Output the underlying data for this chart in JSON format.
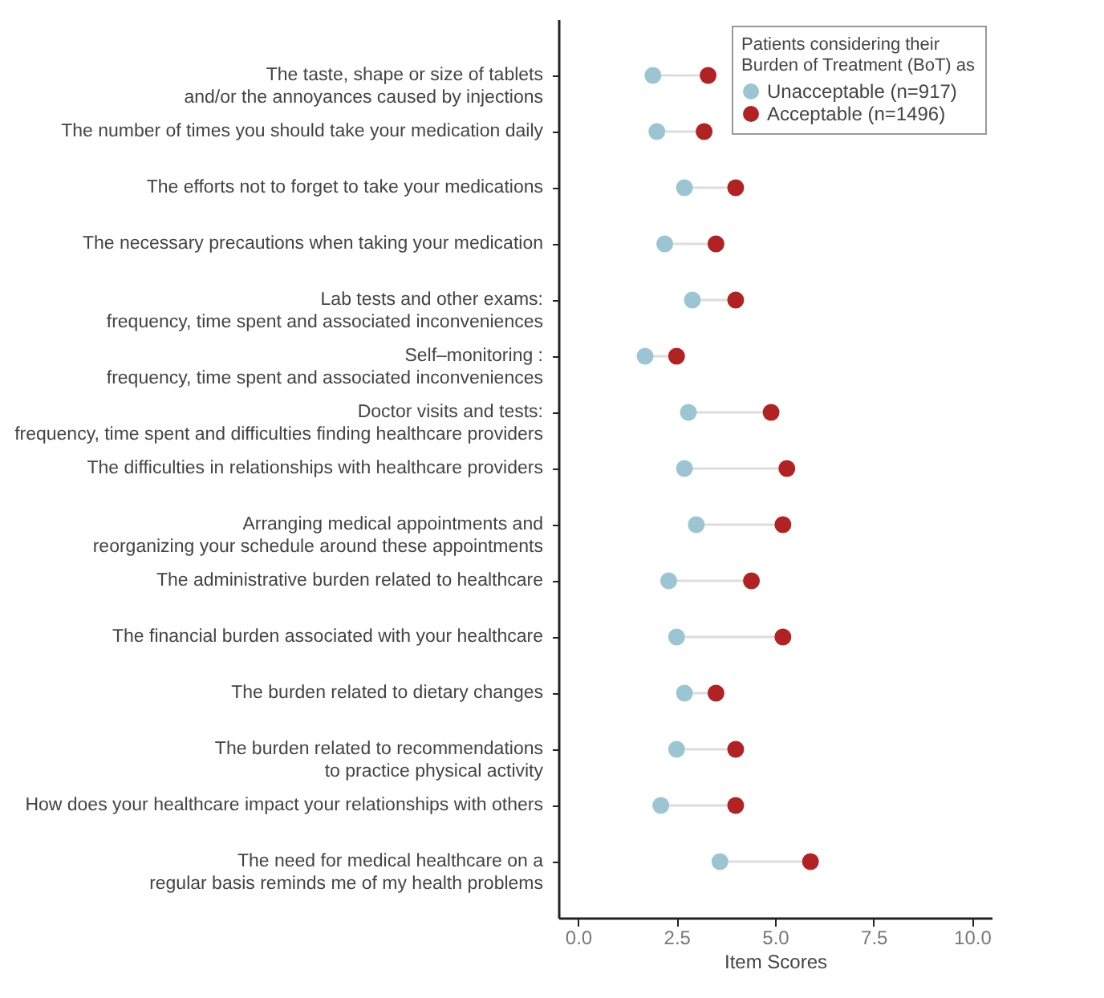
{
  "chart_data": {
    "type": "scatter",
    "xlabel": "Item Scores",
    "legend_title": "Patients considering their Burden of Treatment (BoT) as",
    "categories": [
      "The taste, shape or size of tablets\nand/or the annoyances caused by injections",
      "The number of times you should take your medication daily",
      "The efforts not to forget to take your medications",
      "The necessary precautions when taking your medication",
      "Lab tests and other exams:\nfrequency, time spent and associated inconveniences",
      "Self–monitoring :\nfrequency, time spent and associated inconveniences",
      "Doctor visits and tests:\nfrequency, time spent and difficulties finding healthcare providers",
      "The difficulties in relationships with healthcare providers",
      "Arranging medical appointments and\nreorganizing your schedule around these appointments",
      "The administrative burden related to healthcare",
      "The financial burden associated with your healthcare",
      "The burden related to dietary changes",
      "The burden related to recommendations\nto practice physical activity",
      "How does your healthcare impact your relationships with others",
      "The need for medical healthcare on a\nregular basis reminds me of my health problems"
    ],
    "series": [
      {
        "name": "Unacceptable (n=917)",
        "color": "#9cc5d3",
        "values": [
          1.9,
          2.0,
          2.7,
          2.2,
          2.9,
          1.7,
          2.8,
          2.7,
          3.0,
          2.3,
          2.5,
          2.7,
          2.5,
          2.1,
          3.6
        ]
      },
      {
        "name": "Acceptable (n=1496)",
        "color": "#b22222",
        "values": [
          3.3,
          3.2,
          4.0,
          3.5,
          4.0,
          2.5,
          4.9,
          5.3,
          5.2,
          4.4,
          5.2,
          3.5,
          4.0,
          4.0,
          5.9
        ]
      }
    ],
    "xlim": [
      -0.5,
      10.5
    ],
    "xticks": [
      {
        "value": 0,
        "label": "0.0"
      },
      {
        "value": 2.5,
        "label": "2.5"
      },
      {
        "value": 5,
        "label": "5.0"
      },
      {
        "value": 7.5,
        "label": "7.5"
      },
      {
        "value": 10,
        "label": "10.0"
      }
    ],
    "grid": false,
    "legend": "top right",
    "marker": "circle",
    "orientation": "horizontal"
  }
}
